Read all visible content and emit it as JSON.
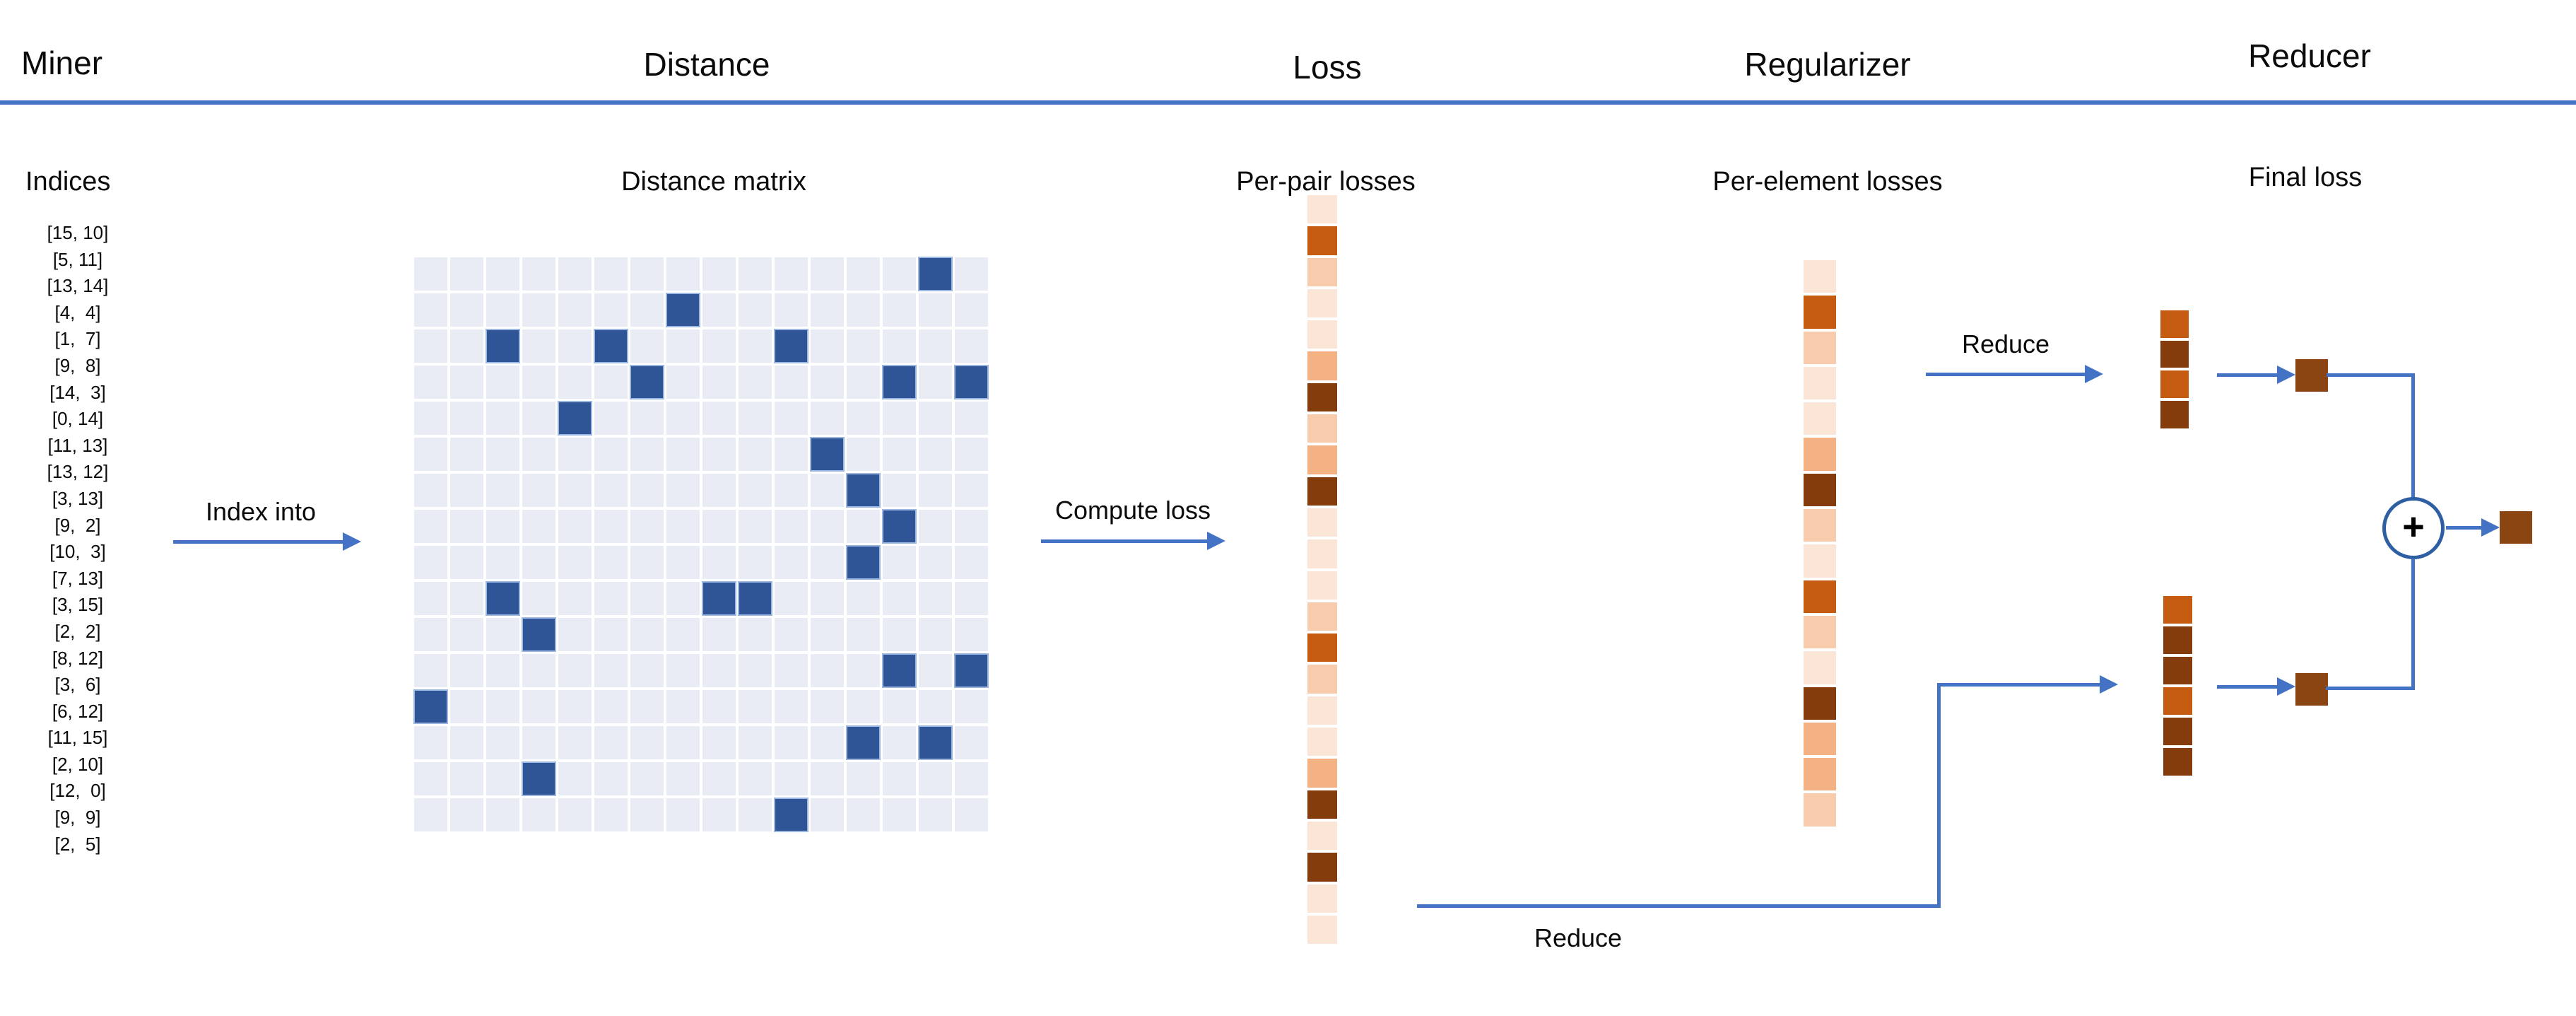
{
  "palette": {
    "blue": "#4472C4",
    "matrix_on": "#2F5597",
    "matrix_off": "#E9EBF5",
    "circle_stroke": "#2E5FA3",
    "result_brown": "#8B4513",
    "heat": {
      "lightest": "#FBE5D6",
      "light": "#F8CBAD",
      "medium": "#F4B183",
      "orange": "#C55A11",
      "dark": "#843C0C"
    }
  },
  "headers": [
    {
      "title": "Miner"
    },
    {
      "title": "Distance"
    },
    {
      "title": "Loss"
    },
    {
      "title": "Regularizer"
    },
    {
      "title": "Reducer"
    }
  ],
  "subheads": [
    {
      "label": "Indices"
    },
    {
      "label": "Distance matrix"
    },
    {
      "label": "Per-pair losses"
    },
    {
      "label": "Per-element losses"
    },
    {
      "label": "Final loss"
    }
  ],
  "miner": {
    "indices_display": [
      "[15, 10]",
      "[5, 11]",
      "[13, 14]",
      "[4,  4]",
      "[1,  7]",
      "[9,  8]",
      "[14,  3]",
      "[0, 14]",
      "[11, 13]",
      "[13, 12]",
      "[3, 13]",
      "[9,  2]",
      "[10,  3]",
      "[7, 13]",
      "[3, 15]",
      "[2,  2]",
      "[8, 12]",
      "[3,  6]",
      "[6, 12]",
      "[11, 15]",
      "[2, 10]",
      "[12,  0]",
      "[9,  9]",
      "[2,  5]"
    ],
    "arrow_label": "Index into"
  },
  "distance": {
    "matrix_size": 16,
    "highlighted_cells": [
      [
        15,
        10
      ],
      [
        5,
        11
      ],
      [
        13,
        14
      ],
      [
        4,
        4
      ],
      [
        1,
        7
      ],
      [
        9,
        8
      ],
      [
        14,
        3
      ],
      [
        0,
        14
      ],
      [
        11,
        13
      ],
      [
        13,
        12
      ],
      [
        3,
        13
      ],
      [
        9,
        2
      ],
      [
        10,
        3
      ],
      [
        7,
        13
      ],
      [
        3,
        15
      ],
      [
        2,
        2
      ],
      [
        8,
        12
      ],
      [
        3,
        6
      ],
      [
        6,
        12
      ],
      [
        11,
        15
      ],
      [
        2,
        10
      ],
      [
        12,
        0
      ],
      [
        9,
        9
      ],
      [
        2,
        5
      ]
    ]
  },
  "loss": {
    "arrow_label": "Compute loss",
    "cells": [
      "lightest",
      "orange",
      "light",
      "lightest",
      "lightest",
      "medium",
      "dark",
      "light",
      "medium",
      "dark",
      "lightest",
      "lightest",
      "lightest",
      "light",
      "orange",
      "light",
      "lightest",
      "lightest",
      "medium",
      "dark",
      "lightest",
      "dark",
      "lightest",
      "lightest"
    ]
  },
  "regularizer": {
    "cells": [
      "lightest",
      "orange",
      "light",
      "lightest",
      "lightest",
      "medium",
      "dark",
      "light",
      "lightest",
      "orange",
      "light",
      "lightest",
      "dark",
      "medium",
      "medium",
      "light"
    ]
  },
  "reducer": {
    "reduce_label_top": "Reduce",
    "reduce_label_bottom": "Reduce",
    "strip_top": [
      "orange",
      "dark",
      "orange",
      "dark"
    ],
    "strip_bottom": [
      "orange",
      "dark",
      "dark",
      "orange",
      "dark",
      "dark"
    ],
    "plus_sign": "+"
  }
}
